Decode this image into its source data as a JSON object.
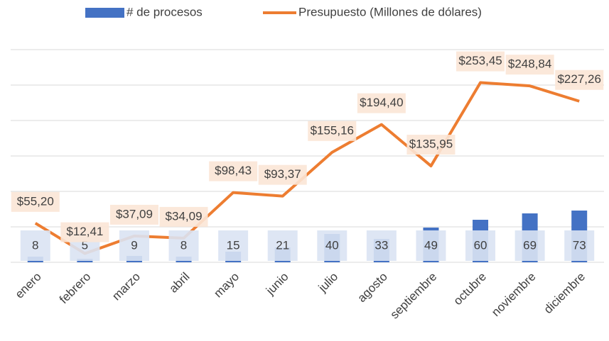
{
  "chart_data": {
    "type": "bar-line",
    "categories": [
      "enero",
      "febrero",
      "marzo",
      "abril",
      "mayo",
      "junio",
      "julio",
      "agosto",
      "septiembre",
      "octubre",
      "noviembre",
      "diciembre"
    ],
    "series": [
      {
        "name": "# de procesos",
        "type": "bar",
        "color": "#4472c4",
        "values": [
          8,
          5,
          9,
          8,
          15,
          21,
          40,
          33,
          49,
          60,
          69,
          73
        ]
      },
      {
        "name": "Presupuesto (Millones de dólares)",
        "type": "line",
        "color": "#ed7d31",
        "values": [
          55.2,
          12.41,
          37.09,
          34.09,
          98.43,
          93.37,
          155.16,
          194.4,
          135.95,
          253.45,
          248.84,
          227.26
        ],
        "value_labels": [
          "$55,20",
          "$12,41",
          "$37,09",
          "$34,09",
          "$98,43",
          "$93,37",
          "$155,16",
          "$194,40",
          "$135,95",
          "$253,45",
          "$248,84",
          "$227,26"
        ]
      }
    ],
    "ylim": [
      0,
      300
    ],
    "yticks": [
      0,
      50,
      100,
      150,
      200,
      250,
      300
    ],
    "grid": true,
    "legend": "top"
  }
}
